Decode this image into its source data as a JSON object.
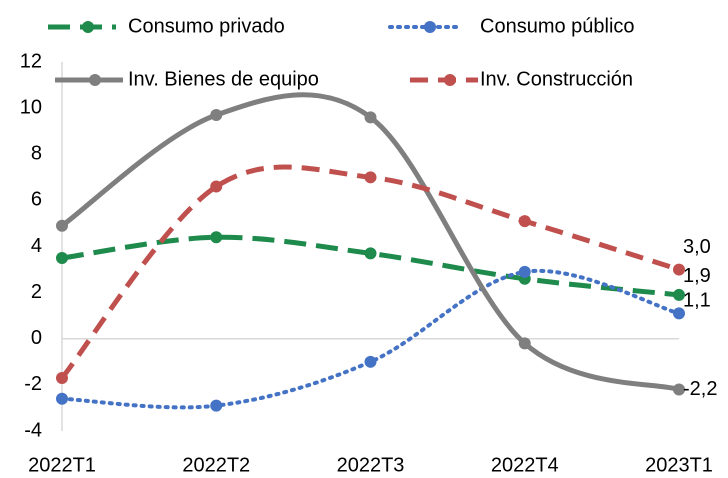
{
  "chart_data": {
    "type": "line",
    "categories": [
      "2022T1",
      "2022T2",
      "2022T3",
      "2022T4",
      "2023T1"
    ],
    "series": [
      {
        "name": "Consumo privado",
        "color": "#1e8a4c",
        "dash": "22,10",
        "values": [
          3.5,
          4.4,
          3.7,
          2.6,
          1.9
        ],
        "value_labels": [
          null,
          null,
          null,
          null,
          "1,9"
        ]
      },
      {
        "name": "Consumo público",
        "color": "#4472c4",
        "dash": "2,6",
        "values": [
          -2.6,
          -2.9,
          -1.0,
          2.9,
          1.1
        ],
        "value_labels": [
          null,
          null,
          null,
          null,
          "1,1"
        ]
      },
      {
        "name": "Inv. Bienes de equipo",
        "color": "#7f7f7f",
        "dash": "none",
        "values": [
          4.9,
          9.7,
          9.6,
          -0.2,
          -2.2
        ],
        "value_labels": [
          null,
          null,
          null,
          null,
          "-2,2"
        ]
      },
      {
        "name": "Inv. Construcción",
        "color": "#c0504d",
        "dash": "18,10",
        "values": [
          -1.7,
          6.6,
          7.0,
          5.1,
          3.0
        ],
        "value_labels": [
          null,
          null,
          null,
          null,
          "3,0"
        ]
      }
    ],
    "ylim": [
      -4,
      12
    ],
    "yticks": [
      -4,
      -2,
      0,
      2,
      4,
      6,
      8,
      10,
      12
    ],
    "grid": false,
    "legend": "top"
  }
}
